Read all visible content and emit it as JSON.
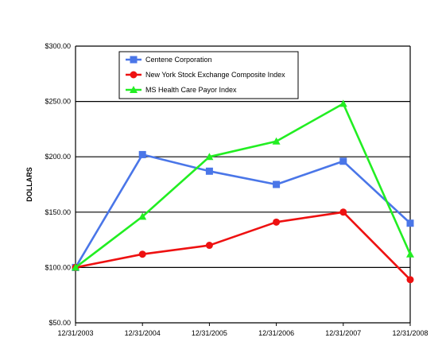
{
  "chart_data": {
    "type": "line",
    "title": "",
    "xlabel": "",
    "ylabel": "DOLLARS",
    "categories": [
      "12/31/2003",
      "12/31/2004",
      "12/31/2005",
      "12/31/2006",
      "12/31/2007",
      "12/31/2008"
    ],
    "ylim": [
      50,
      300
    ],
    "yticks": [
      "$50.00",
      "$100.00",
      "$150.00",
      "$200.00",
      "$250.00",
      "$300.00"
    ],
    "grid": true,
    "legend_position": "top-left",
    "series": [
      {
        "name": "Centene Corporation",
        "color": "#4a76e8",
        "marker": "square",
        "values": [
          100,
          202,
          187,
          175,
          196,
          140
        ]
      },
      {
        "name": "New York Stock Exchange Composite Index",
        "color": "#ee1111",
        "marker": "circle",
        "values": [
          100,
          112,
          120,
          141,
          150,
          89
        ]
      },
      {
        "name": "MS Health Care Payor Index",
        "color": "#22ee22",
        "marker": "triangle",
        "values": [
          100,
          146,
          200,
          214,
          248,
          112
        ]
      }
    ]
  }
}
